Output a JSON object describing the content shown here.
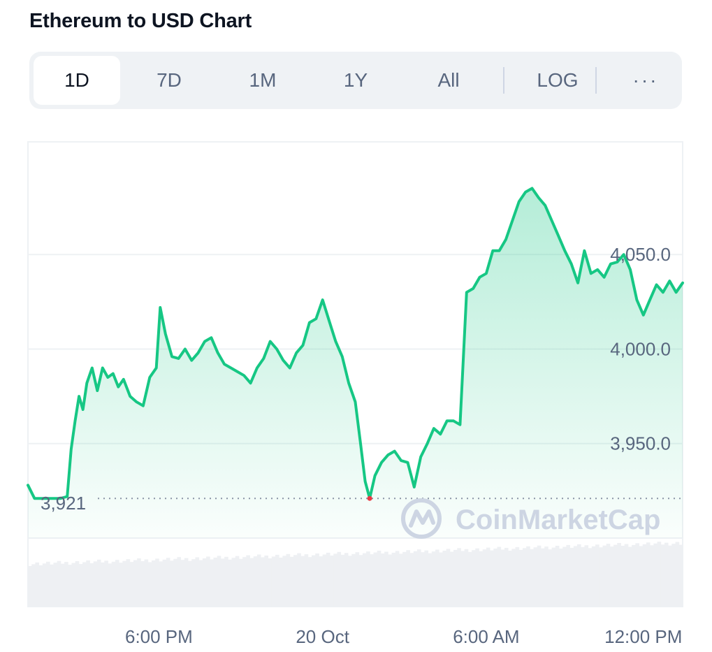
{
  "header": {
    "title": "Ethereum to USD Chart"
  },
  "timeframe_tabs": [
    {
      "label": "1D",
      "active": true
    },
    {
      "label": "7D",
      "active": false
    },
    {
      "label": "1M",
      "active": false
    },
    {
      "label": "1Y",
      "active": false
    },
    {
      "label": "All",
      "active": false
    }
  ],
  "scale_toggle": {
    "label": "LOG"
  },
  "more_menu": {
    "label": "···",
    "icon": "more-horizontal-icon"
  },
  "watermark": {
    "text": "CoinMarketCap",
    "icon": "coinmarketcap-logo-icon",
    "color": "#cdd5e3"
  },
  "colors": {
    "line": "#16c784",
    "low_marker": "#ea3943",
    "grid": "#eff2f5",
    "text": "#58667e"
  },
  "chart_data": {
    "type": "area",
    "ylim": [
      3900,
      4107
    ],
    "yticks": [
      {
        "value": 4050,
        "label": "4,050.0"
      },
      {
        "value": 4000,
        "label": "4,000.0"
      },
      {
        "value": 3950,
        "label": "3,950.0"
      }
    ],
    "xticks": [
      {
        "t": 0.2,
        "label": "6:00 PM"
      },
      {
        "t": 0.45,
        "label": "20 Oct"
      },
      {
        "t": 0.7,
        "label": "6:00 AM"
      },
      {
        "t": 0.94,
        "label": "12:00 PM"
      }
    ],
    "reference": {
      "value": 3921,
      "label": "3,921"
    },
    "series": [
      {
        "points": [
          [
            0.0,
            3928
          ],
          [
            0.01,
            3921
          ],
          [
            0.03,
            3921
          ],
          [
            0.05,
            3921
          ],
          [
            0.06,
            3922
          ],
          [
            0.066,
            3947
          ],
          [
            0.072,
            3962
          ],
          [
            0.078,
            3975
          ],
          [
            0.084,
            3968
          ],
          [
            0.09,
            3982
          ],
          [
            0.098,
            3990
          ],
          [
            0.106,
            3978
          ],
          [
            0.114,
            3990
          ],
          [
            0.122,
            3985
          ],
          [
            0.13,
            3987
          ],
          [
            0.138,
            3980
          ],
          [
            0.146,
            3984
          ],
          [
            0.156,
            3975
          ],
          [
            0.166,
            3972
          ],
          [
            0.176,
            3970
          ],
          [
            0.186,
            3985
          ],
          [
            0.196,
            3990
          ],
          [
            0.202,
            4022
          ],
          [
            0.21,
            4008
          ],
          [
            0.22,
            3996
          ],
          [
            0.23,
            3995
          ],
          [
            0.24,
            4000
          ],
          [
            0.25,
            3994
          ],
          [
            0.26,
            3998
          ],
          [
            0.27,
            4004
          ],
          [
            0.28,
            4006
          ],
          [
            0.29,
            3998
          ],
          [
            0.3,
            3992
          ],
          [
            0.31,
            3990
          ],
          [
            0.32,
            3988
          ],
          [
            0.33,
            3986
          ],
          [
            0.34,
            3982
          ],
          [
            0.35,
            3990
          ],
          [
            0.36,
            3995
          ],
          [
            0.37,
            4004
          ],
          [
            0.38,
            4000
          ],
          [
            0.39,
            3994
          ],
          [
            0.4,
            3990
          ],
          [
            0.41,
            3998
          ],
          [
            0.42,
            4002
          ],
          [
            0.43,
            4014
          ],
          [
            0.44,
            4016
          ],
          [
            0.45,
            4026
          ],
          [
            0.46,
            4015
          ],
          [
            0.47,
            4004
          ],
          [
            0.48,
            3996
          ],
          [
            0.49,
            3982
          ],
          [
            0.5,
            3972
          ],
          [
            0.508,
            3950
          ],
          [
            0.515,
            3930
          ],
          [
            0.522,
            3921
          ],
          [
            0.53,
            3933
          ],
          [
            0.54,
            3940
          ],
          [
            0.55,
            3944
          ],
          [
            0.56,
            3946
          ],
          [
            0.57,
            3941
          ],
          [
            0.58,
            3940
          ],
          [
            0.59,
            3927
          ],
          [
            0.6,
            3943
          ],
          [
            0.61,
            3950
          ],
          [
            0.62,
            3958
          ],
          [
            0.63,
            3955
          ],
          [
            0.64,
            3962
          ],
          [
            0.65,
            3962
          ],
          [
            0.66,
            3960
          ],
          [
            0.67,
            4030
          ],
          [
            0.68,
            4032
          ],
          [
            0.69,
            4038
          ],
          [
            0.7,
            4040
          ],
          [
            0.71,
            4052
          ],
          [
            0.72,
            4052
          ],
          [
            0.73,
            4058
          ],
          [
            0.74,
            4068
          ],
          [
            0.75,
            4078
          ],
          [
            0.76,
            4083
          ],
          [
            0.77,
            4085
          ],
          [
            0.78,
            4080
          ],
          [
            0.79,
            4076
          ],
          [
            0.8,
            4068
          ],
          [
            0.81,
            4060
          ],
          [
            0.82,
            4052
          ],
          [
            0.83,
            4045
          ],
          [
            0.84,
            4035
          ],
          [
            0.85,
            4052
          ],
          [
            0.86,
            4040
          ],
          [
            0.87,
            4042
          ],
          [
            0.88,
            4038
          ],
          [
            0.89,
            4045
          ],
          [
            0.9,
            4046
          ],
          [
            0.91,
            4050
          ],
          [
            0.92,
            4042
          ],
          [
            0.93,
            4026
          ],
          [
            0.94,
            4018
          ],
          [
            0.95,
            4026
          ],
          [
            0.96,
            4034
          ],
          [
            0.97,
            4030
          ],
          [
            0.98,
            4036
          ],
          [
            0.99,
            4030
          ],
          [
            1.0,
            4035
          ]
        ]
      }
    ]
  }
}
